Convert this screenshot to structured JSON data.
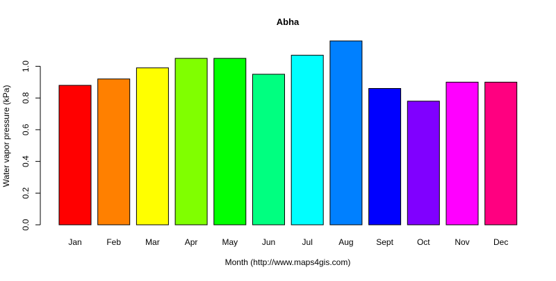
{
  "chart_data": {
    "type": "bar",
    "title": "Abha",
    "xlabel": "Month (http://www.maps4gis.com)",
    "ylabel": "Water vapor pressure (kPa)",
    "categories": [
      "Jan",
      "Feb",
      "Mar",
      "Apr",
      "May",
      "Jun",
      "Jul",
      "Aug",
      "Sept",
      "Oct",
      "Nov",
      "Dec"
    ],
    "values": [
      0.88,
      0.92,
      0.99,
      1.05,
      1.05,
      0.95,
      1.07,
      1.16,
      0.86,
      0.78,
      0.9,
      0.9
    ],
    "colors": [
      "#FF0000",
      "#FF8000",
      "#FFFF00",
      "#80FF00",
      "#00FF00",
      "#00FF80",
      "#00FFFF",
      "#0080FF",
      "#0000FF",
      "#8000FF",
      "#FF00FF",
      "#FF0080"
    ],
    "ylim": [
      0,
      1.16
    ],
    "yticks": [
      0.0,
      0.2,
      0.4,
      0.6,
      0.8,
      1.0
    ],
    "ytick_labels": [
      "0.0",
      "0.2",
      "0.4",
      "0.6",
      "0.8",
      "1.0"
    ],
    "grid": false,
    "legend": "none"
  }
}
